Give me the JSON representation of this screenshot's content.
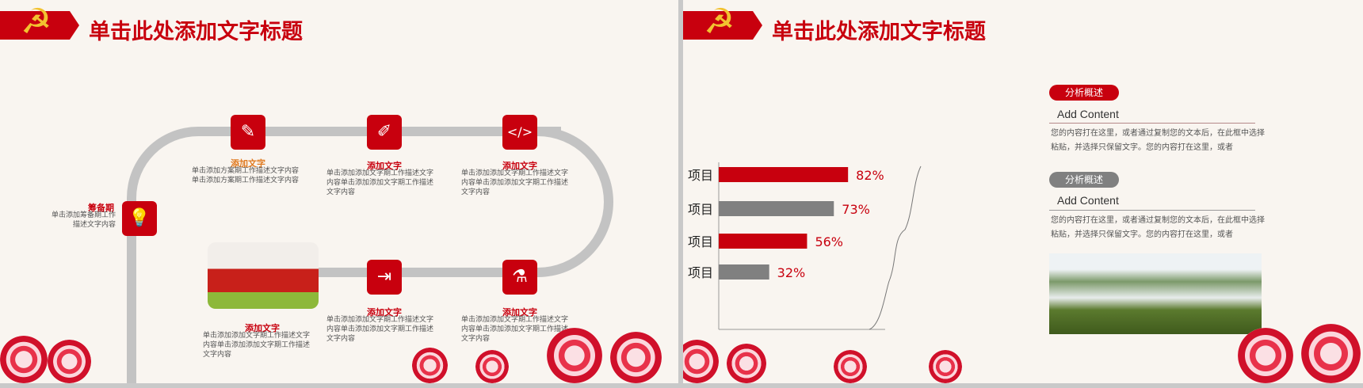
{
  "colors": {
    "accent": "#c8000e",
    "gray": "#808080",
    "track": "#c3c3c3"
  },
  "slide1": {
    "title": "单击此处添加文字标题",
    "emblem_icon": "hammer-sickle-icon",
    "start": {
      "label": "筹备期",
      "desc": "单击添加筹备期工作描述文字内容",
      "icon": "lightbulb-icon"
    },
    "steps": [
      {
        "label": "添加文字",
        "desc": "单击添加方案期工作描述文字内容单击添加方案期工作描述文字内容",
        "icon": "pencil-icon"
      },
      {
        "label": "添加文字",
        "desc": "单击添加添加文字期工作描述文字内容单击添加添加文字期工作描述文字内容",
        "icon": "brush-icon"
      },
      {
        "label": "添加文字",
        "desc": "单击添加添加文字期工作描述文字内容单击添加添加文字期工作描述文字内容",
        "icon": "code-icon"
      },
      {
        "label": "添加文字",
        "desc": "单击添加添加文字期工作描述文字内容单击添加添加文字期工作描述文字内容",
        "icon": "flask-icon"
      },
      {
        "label": "添加文字",
        "desc": "单击添加添加文字期工作描述文字内容单击添加添加文字期工作描述文字内容",
        "icon": "export-icon"
      },
      {
        "label": "添加文字",
        "desc": "单击添加添加文字期工作描述文字内容单击添加添加文字期工作描述文字内容",
        "icon": "tiananmen-image"
      }
    ]
  },
  "slide2": {
    "title": "单击此处添加文字标题",
    "sections": [
      {
        "badge": "分析概述",
        "heading": "Add Content",
        "text": "您的内容打在这里，或者通过复制您的文本后，在此框中选择粘贴，并选择只保留文字。您的内容打在这里，或者",
        "color": "#c8000e"
      },
      {
        "badge": "分析概述",
        "heading": "Add Content",
        "text": "您的内容打在这里，或者通过复制您的文本后，在此框中选择粘贴，并选择只保留文字。您的内容打在这里，或者",
        "color": "#808080"
      }
    ]
  },
  "chart_data": {
    "type": "bar",
    "orientation": "horizontal",
    "categories": [
      "项目",
      "项目",
      "项目",
      "项目"
    ],
    "values": [
      82,
      73,
      56,
      32
    ],
    "labels": [
      "82%",
      "73%",
      "56%",
      "32%"
    ],
    "bar_colors": [
      "#c8000e",
      "#808080",
      "#c8000e",
      "#808080"
    ],
    "xlim": [
      0,
      100
    ]
  }
}
